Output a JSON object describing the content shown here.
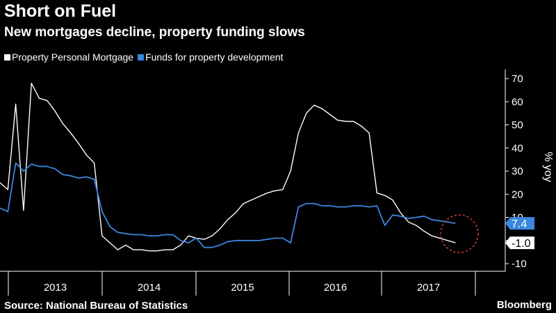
{
  "header": {
    "title": "Short on Fuel",
    "subtitle": "New mortgages decline, property funding slows"
  },
  "footer": {
    "source": "Source: National Bureau of Statistics",
    "brand": "Bloomberg"
  },
  "chart_data": {
    "type": "line",
    "title": "Short on Fuel",
    "subtitle": "New mortgages decline, property funding slows",
    "ylabel": "% yoy",
    "ylim": [
      -10,
      70
    ],
    "yticks": [
      "70",
      "60",
      "50",
      "40",
      "30",
      "20",
      "10",
      "0",
      "-10"
    ],
    "year_labels": [
      "2013",
      "2014",
      "2015",
      "2016",
      "2017"
    ],
    "grid": false,
    "legend": "top-left",
    "series": [
      {
        "name": "Property Personal Mortgage",
        "color": "#ffffff",
        "end_label": "-1.0",
        "values": [
          25,
          22,
          59,
          13,
          68,
          61.5,
          60.5,
          56,
          50.5,
          46.5,
          42,
          37,
          33.5,
          2,
          -1,
          -4,
          -2,
          -4,
          -4,
          -4.5,
          -4.5,
          -4,
          -4,
          -2,
          2,
          1,
          0.5,
          2,
          5,
          9,
          12,
          16,
          17.5,
          19,
          20.5,
          21.5,
          22,
          30,
          46.5,
          55,
          58.5,
          57,
          54.5,
          52,
          51.5,
          51.5,
          49.5,
          46.5,
          20.5,
          19.5,
          17.5,
          12,
          8,
          6.5,
          4,
          2,
          1,
          0,
          -1
        ]
      },
      {
        "name": "Funds for property development",
        "color": "#3a87e0",
        "end_label": "7.4",
        "values": [
          14,
          12.5,
          33.5,
          30,
          33,
          32,
          32,
          31,
          28.5,
          28,
          27,
          27.5,
          26.5,
          12.5,
          6,
          3.5,
          3,
          2.5,
          2.5,
          2,
          2,
          2.5,
          2.5,
          0,
          -1,
          1,
          -3,
          -3,
          -2,
          -0.5,
          0,
          0,
          0,
          0,
          0.5,
          1,
          1,
          -1,
          14.5,
          16,
          16,
          15,
          15,
          14.5,
          14.5,
          15,
          15,
          14.5,
          15,
          6.5,
          11,
          10.5,
          9.5,
          10,
          10.5,
          9,
          8.5,
          8,
          7.4
        ]
      }
    ]
  }
}
